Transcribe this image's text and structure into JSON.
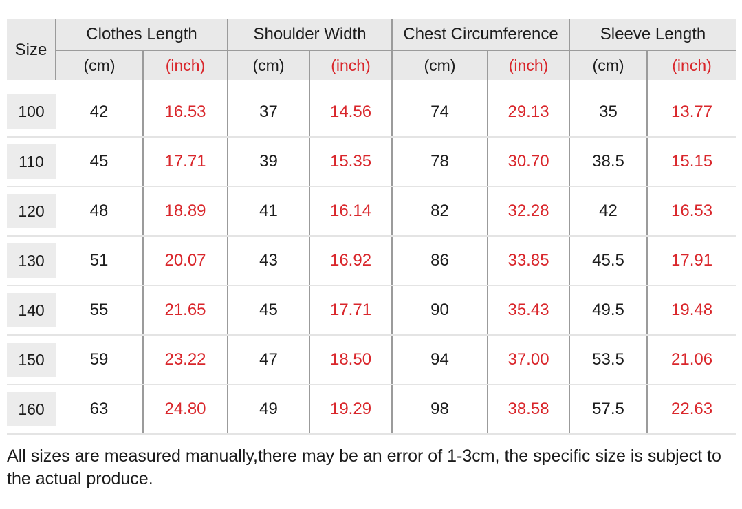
{
  "table": {
    "size_header": "Size",
    "groups": [
      {
        "label": "Clothes Length"
      },
      {
        "label": "Shoulder Width"
      },
      {
        "label": "Chest Circumference"
      },
      {
        "label": "Sleeve Length"
      }
    ],
    "unit_cm": "(cm)",
    "unit_inch": "(inch)",
    "rows": [
      {
        "size": "100",
        "values": [
          "42",
          "16.53",
          "37",
          "14.56",
          "74",
          "29.13",
          "35",
          "13.77"
        ]
      },
      {
        "size": "110",
        "values": [
          "45",
          "17.71",
          "39",
          "15.35",
          "78",
          "30.70",
          "38.5",
          "15.15"
        ]
      },
      {
        "size": "120",
        "values": [
          "48",
          "18.89",
          "41",
          "16.14",
          "82",
          "32.28",
          "42",
          "16.53"
        ]
      },
      {
        "size": "130",
        "values": [
          "51",
          "20.07",
          "43",
          "16.92",
          "86",
          "33.85",
          "45.5",
          "17.91"
        ]
      },
      {
        "size": "140",
        "values": [
          "55",
          "21.65",
          "45",
          "17.71",
          "90",
          "35.43",
          "49.5",
          "19.48"
        ]
      },
      {
        "size": "150",
        "values": [
          "59",
          "23.22",
          "47",
          "18.50",
          "94",
          "37.00",
          "53.5",
          "21.06"
        ]
      },
      {
        "size": "160",
        "values": [
          "63",
          "24.80",
          "49",
          "19.29",
          "98",
          "38.58",
          "57.5",
          "22.63"
        ]
      }
    ]
  },
  "footer": {
    "note": "All sizes are measured manually,there may be an error of 1-3cm, the specific size is subject to the actual produce."
  },
  "colors": {
    "accent_red": "#d9262b",
    "header_bg": "#e9e9e9",
    "size_cell_bg": "#ececec",
    "dark_line": "#9b9b9b",
    "light_line": "#e4e4e4",
    "text": "#1d1d1d"
  },
  "chart_data": {
    "type": "table",
    "title": "Garment size chart",
    "columns": [
      "Size",
      "Clothes Length (cm)",
      "Clothes Length (inch)",
      "Shoulder Width (cm)",
      "Shoulder Width (inch)",
      "Chest Circumference (cm)",
      "Chest Circumference (inch)",
      "Sleeve Length (cm)",
      "Sleeve Length (inch)"
    ],
    "rows": [
      [
        100,
        42,
        16.53,
        37,
        14.56,
        74,
        29.13,
        35,
        13.77
      ],
      [
        110,
        45,
        17.71,
        39,
        15.35,
        78,
        30.7,
        38.5,
        15.15
      ],
      [
        120,
        48,
        18.89,
        41,
        16.14,
        82,
        32.28,
        42,
        16.53
      ],
      [
        130,
        51,
        20.07,
        43,
        16.92,
        86,
        33.85,
        45.5,
        17.91
      ],
      [
        140,
        55,
        21.65,
        45,
        17.71,
        90,
        35.43,
        49.5,
        19.48
      ],
      [
        150,
        59,
        23.22,
        47,
        18.5,
        94,
        37.0,
        53.5,
        21.06
      ],
      [
        160,
        63,
        24.8,
        49,
        19.29,
        98,
        38.58,
        57.5,
        22.63
      ]
    ],
    "note": "All sizes are measured manually,there may be an error of 1-3cm, the specific size is subject to the actual produce."
  }
}
